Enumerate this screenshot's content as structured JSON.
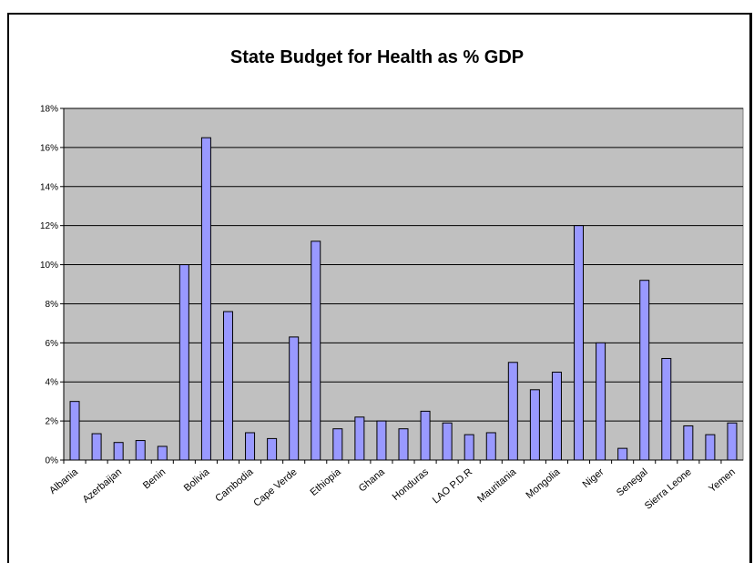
{
  "chart_data": {
    "type": "bar",
    "title": "State Budget for Health as % GDP",
    "xlabel": "",
    "ylabel": "",
    "ylim": [
      0,
      18
    ],
    "y_ticks": [
      "0%",
      "2%",
      "4%",
      "6%",
      "8%",
      "10%",
      "12%",
      "14%",
      "16%",
      "18%"
    ],
    "grid": true,
    "bar_color": "#9999ff",
    "plot_background": "#c0c0c0",
    "categories": [
      "Albania",
      "",
      "Azerbaijan",
      "",
      "Benin",
      "",
      "Bolivia",
      "",
      "Cambodia",
      "",
      "Cape Verde",
      "",
      "Ethiopia",
      "",
      "Ghana",
      "",
      "Honduras",
      "",
      "LAO P.D.R",
      "",
      "Mauritania",
      "",
      "Mongolia",
      "",
      "Niger",
      "",
      "Senegal",
      "",
      "Sierra Leone",
      "",
      "Yemen"
    ],
    "values": [
      3.0,
      1.35,
      0.9,
      1.0,
      0.7,
      10.0,
      16.5,
      7.6,
      1.4,
      1.1,
      6.3,
      11.2,
      1.6,
      2.2,
      2.0,
      1.6,
      2.5,
      1.9,
      1.3,
      1.4,
      5.0,
      3.6,
      4.5,
      12.0,
      6.0,
      0.6,
      9.2,
      5.2,
      1.75,
      1.3,
      1.9
    ]
  }
}
